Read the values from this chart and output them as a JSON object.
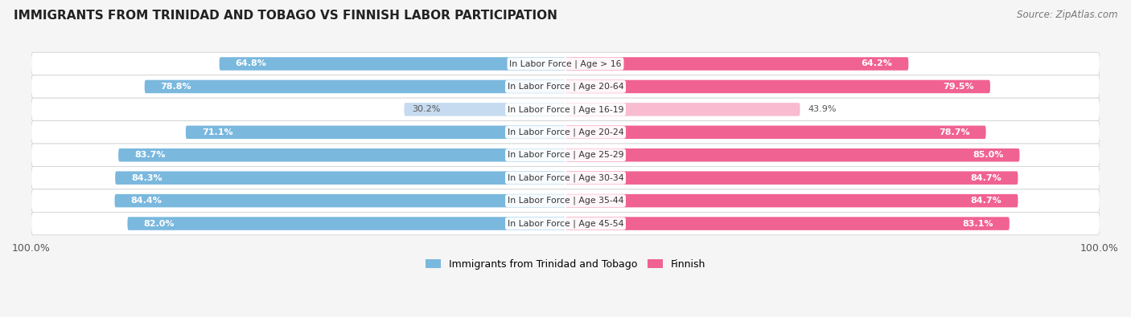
{
  "title": "IMMIGRANTS FROM TRINIDAD AND TOBAGO VS FINNISH LABOR PARTICIPATION",
  "source": "Source: ZipAtlas.com",
  "categories": [
    "In Labor Force | Age > 16",
    "In Labor Force | Age 20-64",
    "In Labor Force | Age 16-19",
    "In Labor Force | Age 20-24",
    "In Labor Force | Age 25-29",
    "In Labor Force | Age 30-34",
    "In Labor Force | Age 35-44",
    "In Labor Force | Age 45-54"
  ],
  "left_values": [
    64.8,
    78.8,
    30.2,
    71.1,
    83.7,
    84.3,
    84.4,
    82.0
  ],
  "right_values": [
    64.2,
    79.5,
    43.9,
    78.7,
    85.0,
    84.7,
    84.7,
    83.1
  ],
  "left_labels": [
    "64.8%",
    "78.8%",
    "30.2%",
    "71.1%",
    "83.7%",
    "84.3%",
    "84.4%",
    "82.0%"
  ],
  "right_labels": [
    "64.2%",
    "79.5%",
    "43.9%",
    "78.7%",
    "85.0%",
    "84.7%",
    "84.7%",
    "83.1%"
  ],
  "left_color_strong": "#7ab8de",
  "left_color_weak": "#c6dbef",
  "right_color_strong": "#f06292",
  "right_color_weak": "#f8bbd0",
  "left_text_color_strong": "#ffffff",
  "left_text_color_weak": "#555555",
  "right_text_color_strong": "#ffffff",
  "right_text_color_weak": "#555555",
  "bar_height": 0.58,
  "xlim": 100.0,
  "legend_left": "Immigrants from Trinidad and Tobago",
  "legend_right": "Finnish",
  "bg_color": "#f5f5f5",
  "weak_indices": [
    2
  ]
}
